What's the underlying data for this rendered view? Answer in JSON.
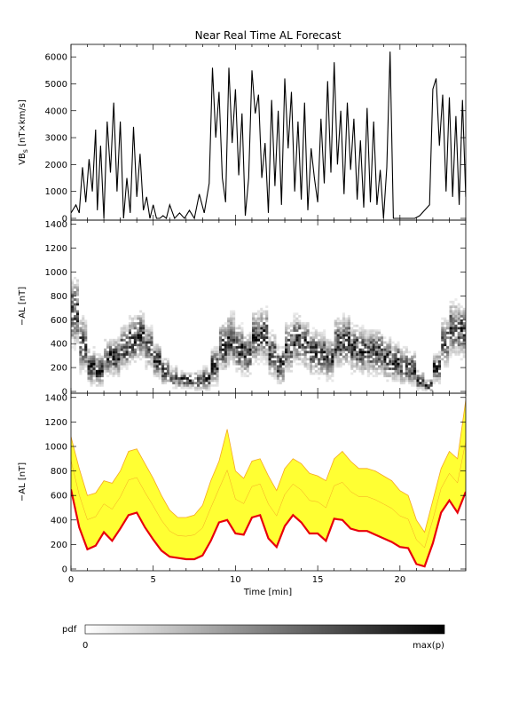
{
  "title": "Near Real Time AL Forecast",
  "xlabel": "Time [min]",
  "colorbar": {
    "label": "pdf",
    "min_label": "0",
    "max_label": "max(p)"
  },
  "colors": {
    "band": "#ffff33",
    "band_edge": "#f5a623",
    "median": "#e8000b",
    "line": "#000000",
    "density": "#000000"
  },
  "chart_data": [
    {
      "type": "line",
      "id": "vbs",
      "ylabel": "VB",
      "ylabel_sub": "s",
      "ylabel_unit": "[nT×km/s]",
      "xlim": [
        0,
        24
      ],
      "ylim": [
        0,
        6400
      ],
      "xticks": [
        0,
        5,
        10,
        15,
        20
      ],
      "yticks": [
        0,
        1000,
        2000,
        3000,
        4000,
        5000,
        6000
      ],
      "x": [
        0,
        0.3,
        0.5,
        0.7,
        0.9,
        1.1,
        1.3,
        1.5,
        1.6,
        1.8,
        2.0,
        2.2,
        2.4,
        2.6,
        2.8,
        3.0,
        3.2,
        3.4,
        3.6,
        3.8,
        4.0,
        4.2,
        4.4,
        4.6,
        4.8,
        5.0,
        5.2,
        5.4,
        5.6,
        5.8,
        6.0,
        6.3,
        6.6,
        6.9,
        7.2,
        7.5,
        7.8,
        8.1,
        8.4,
        8.6,
        8.8,
        9.0,
        9.2,
        9.4,
        9.6,
        9.8,
        10.0,
        10.2,
        10.4,
        10.6,
        10.8,
        11.0,
        11.2,
        11.4,
        11.6,
        11.8,
        12.0,
        12.2,
        12.4,
        12.6,
        12.8,
        13.0,
        13.2,
        13.4,
        13.6,
        13.8,
        14.0,
        14.2,
        14.4,
        14.6,
        14.8,
        15.0,
        15.2,
        15.4,
        15.6,
        15.8,
        16.0,
        16.2,
        16.4,
        16.6,
        16.8,
        17.0,
        17.2,
        17.4,
        17.6,
        17.8,
        18.0,
        18.2,
        18.4,
        18.6,
        18.8,
        19.0,
        19.2,
        19.4,
        19.6,
        19.8,
        20.0,
        20.3,
        20.6,
        20.9,
        21.2,
        21.5,
        21.8,
        22.0,
        22.2,
        22.4,
        22.6,
        22.8,
        23.0,
        23.2,
        23.4,
        23.6,
        23.8,
        24.0
      ],
      "y": [
        200,
        500,
        200,
        1900,
        600,
        2200,
        1000,
        3300,
        300,
        2700,
        0,
        3600,
        1700,
        4300,
        1000,
        3600,
        0,
        1500,
        200,
        3400,
        800,
        2400,
        300,
        800,
        0,
        500,
        0,
        0,
        100,
        0,
        500,
        0,
        200,
        0,
        300,
        0,
        900,
        200,
        1300,
        5600,
        3000,
        4700,
        1500,
        600,
        5600,
        2800,
        4800,
        1600,
        3900,
        100,
        1500,
        5500,
        3900,
        4600,
        1500,
        2800,
        200,
        4400,
        1200,
        4000,
        500,
        5200,
        2600,
        4700,
        1000,
        3600,
        700,
        4300,
        300,
        2600,
        1500,
        600,
        3700,
        1300,
        5100,
        1700,
        5800,
        2000,
        4000,
        900,
        4300,
        1800,
        3700,
        700,
        2900,
        400,
        4100,
        600,
        3600,
        500,
        1800,
        0,
        1900,
        6200,
        0,
        0,
        0,
        0,
        0,
        0,
        100,
        300,
        500,
        4800,
        5200,
        2700,
        4600,
        1000,
        4500,
        800,
        3800,
        500,
        4400,
        800
      ]
    },
    {
      "type": "heatmap",
      "id": "al-pdf",
      "ylabel": "−AL [nT]",
      "xlim": [
        0,
        24
      ],
      "ylim": [
        0,
        1420
      ],
      "yticks": [
        0,
        200,
        400,
        600,
        800,
        1000,
        1200,
        1400
      ],
      "x": [
        0,
        0.5,
        1,
        1.5,
        2,
        2.5,
        3,
        3.5,
        4,
        4.5,
        5,
        5.5,
        6,
        6.5,
        7,
        7.5,
        8,
        8.5,
        9,
        9.5,
        10,
        10.5,
        11,
        11.5,
        12,
        12.5,
        13,
        13.5,
        14,
        14.5,
        15,
        15.5,
        16,
        16.5,
        17,
        17.5,
        18,
        18.5,
        19,
        19.5,
        20,
        20.5,
        21,
        21.5,
        22,
        22.5,
        23,
        23.5,
        24
      ],
      "center": [
        650,
        380,
        200,
        170,
        280,
        280,
        360,
        420,
        460,
        360,
        250,
        160,
        110,
        90,
        80,
        80,
        100,
        200,
        360,
        420,
        340,
        300,
        440,
        460,
        300,
        210,
        360,
        420,
        380,
        320,
        300,
        260,
        400,
        420,
        350,
        330,
        320,
        320,
        260,
        240,
        200,
        180,
        80,
        40,
        190,
        400,
        520,
        500,
        620
      ],
      "spread": [
        360,
        300,
        200,
        170,
        190,
        200,
        230,
        250,
        250,
        220,
        180,
        140,
        110,
        90,
        90,
        100,
        130,
        200,
        260,
        280,
        250,
        230,
        270,
        280,
        230,
        200,
        250,
        260,
        250,
        230,
        230,
        220,
        260,
        270,
        250,
        240,
        240,
        240,
        220,
        210,
        190,
        170,
        110,
        80,
        160,
        240,
        280,
        280,
        320
      ]
    },
    {
      "type": "area",
      "id": "al-forecast",
      "ylabel": "−AL [nT]",
      "xlim": [
        0,
        24
      ],
      "ylim": [
        0,
        1420
      ],
      "yticks": [
        0,
        200,
        400,
        600,
        800,
        1000,
        1200,
        1400
      ],
      "x": [
        0,
        0.5,
        1,
        1.5,
        2,
        2.5,
        3,
        3.5,
        4,
        4.5,
        5,
        5.5,
        6,
        6.5,
        7,
        7.5,
        8,
        8.5,
        9,
        9.5,
        10,
        10.5,
        11,
        11.5,
        12,
        12.5,
        13,
        13.5,
        14,
        14.5,
        15,
        15.5,
        16,
        16.5,
        17,
        17.5,
        18,
        18.5,
        19,
        19.5,
        20,
        20.5,
        21,
        21.5,
        22,
        22.5,
        23,
        23.5,
        24
      ],
      "series": [
        {
          "values": [
            650,
            340,
            160,
            190,
            300,
            230,
            330,
            440,
            460,
            340,
            240,
            150,
            100,
            90,
            80,
            80,
            110,
            230,
            380,
            400,
            290,
            280,
            420,
            440,
            250,
            180,
            350,
            440,
            380,
            290,
            290,
            230,
            410,
            400,
            330,
            310,
            310,
            280,
            250,
            220,
            180,
            170,
            40,
            20,
            210,
            460,
            560,
            460,
            630
          ]
        },
        {
          "values": [
            1080,
            820,
            600,
            620,
            720,
            700,
            800,
            960,
            980,
            860,
            740,
            600,
            480,
            420,
            420,
            440,
            520,
            720,
            880,
            1140,
            800,
            740,
            880,
            900,
            760,
            640,
            820,
            900,
            860,
            780,
            760,
            720,
            900,
            960,
            880,
            820,
            820,
            800,
            760,
            720,
            640,
            600,
            400,
            300,
            560,
            820,
            960,
            900,
            1380
          ]
        }
      ]
    }
  ]
}
